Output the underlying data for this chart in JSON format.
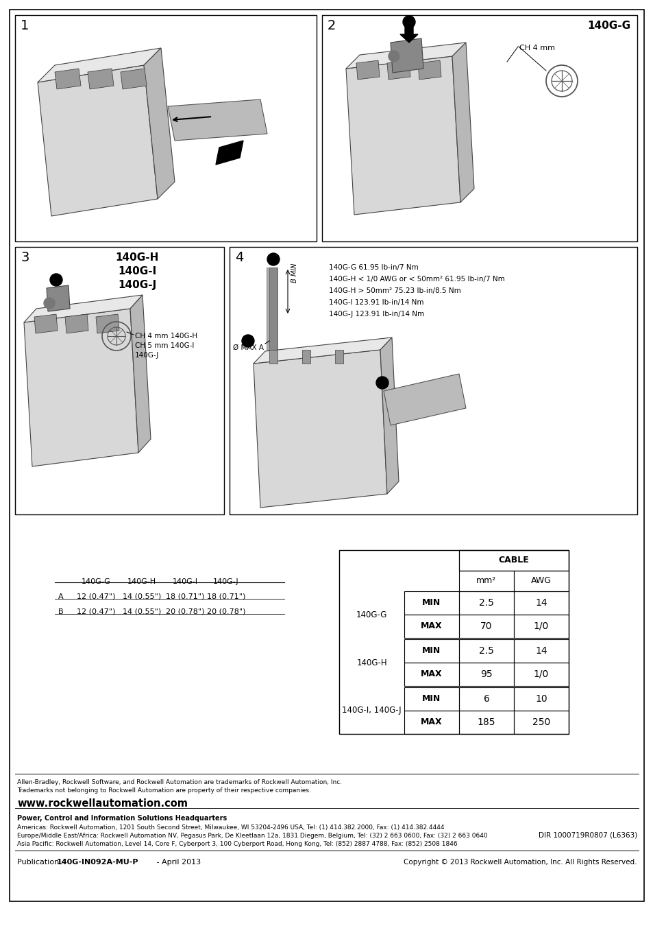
{
  "bg_color": "#ffffff",
  "border_color": "#000000",
  "page_width": 9.54,
  "page_height": 13.5,
  "panel1_title": "1",
  "panel2_title": "2",
  "panel3_title": "3",
  "panel4_title": "4",
  "panel2_model": "140G-G",
  "ch4mm_label": "CH 4 mm",
  "ch_labels": [
    "CH 4 mm 140G-H",
    "CH 5 mm 140G-I",
    "140G-J"
  ],
  "torque_lines": [
    "140G-G 61.95 lb-in/7 Nm",
    "140G-H < 1/0 AWG or < 50mm² 61.95 lb-in/7 Nm",
    "140G-H > 50mm² 75.23 lb-in/8.5 Nm",
    "140G-I 123.91 lb-in/14 Nm",
    "140G-J 123.91 lb-in/14 Nm"
  ],
  "dim_table_headers": [
    "140G-G",
    "140G-H",
    "140G-I",
    "140G-J"
  ],
  "dim_rows": [
    [
      "A",
      "12 (0.47\")",
      "14 (0.55\")",
      "18 (0.71\")",
      "18 (0.71\")"
    ],
    [
      "B",
      "12 (0.47\")",
      "14 (0.55\")",
      "20 (0.78\")",
      "20 (0.78\")"
    ]
  ],
  "cable_table_title": "CABLE",
  "cable_col_headers": [
    "mm²",
    "AWG"
  ],
  "cable_row_labels": [
    "140G-G",
    "140G-H",
    "140G-I, 140G-J"
  ],
  "cable_min_max": [
    "MIN",
    "MAX"
  ],
  "cable_data": [
    [
      "2.5",
      "14",
      "70",
      "1/0"
    ],
    [
      "2.5",
      "14",
      "95",
      "1/0"
    ],
    [
      "6",
      "10",
      "185",
      "250"
    ]
  ],
  "footer_line1": "Allen-Bradley, Rockwell Software, and Rockwell Automation are trademarks of Rockwell Automation, Inc.",
  "footer_line2": "Trademarks not belonging to Rockwell Automation are property of their respective companies.",
  "footer_url": "www.rockwellautomation.com",
  "footer_hq": "Power, Control and Information Solutions Headquarters",
  "footer_americas": "Americas: Rockwell Automation, 1201 South Second Street, Milwaukee, WI 53204-2496 USA, Tel: (1) 414.382.2000, Fax: (1) 414.382.4444",
  "footer_emea": "Europe/Middle East/Africa: Rockwell Automation NV, Pegasus Park, De Kleetlaan 12a, 1831 Diegem, Belgium, Tel: (32) 2 663 0600, Fax: (32) 2 663 0640",
  "footer_ap": "Asia Pacific: Rockwell Automation, Level 14, Core F, Cyberport 3, 100 Cyberport Road, Hong Kong, Tel: (852) 2887 4788, Fax: (852) 2508 1846",
  "footer_dir": "DIR 1000719R0807 (L6363)",
  "footer_pub": "Publication 140G-IN092A-MU-P - April 2013",
  "footer_copyright": "Copyright © 2013 Rockwell Automation, Inc. All Rights Reserved."
}
